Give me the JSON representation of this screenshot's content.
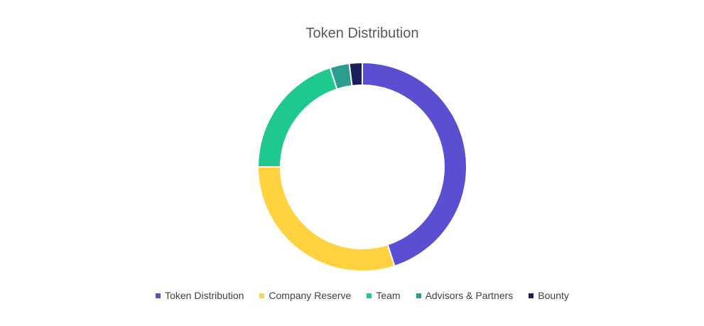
{
  "chart_data": {
    "type": "donut",
    "title": "Token Distribution",
    "categories": [
      "Token Distribution",
      "Company Reserve",
      "Team",
      "Advisors & Partners",
      "Bounty"
    ],
    "values": [
      45,
      30,
      20,
      3,
      2
    ],
    "colors": [
      "#5b4fd1",
      "#ffd23f",
      "#1fc98e",
      "#2a9d8f",
      "#1b1f5a"
    ],
    "legend": "bottom"
  }
}
